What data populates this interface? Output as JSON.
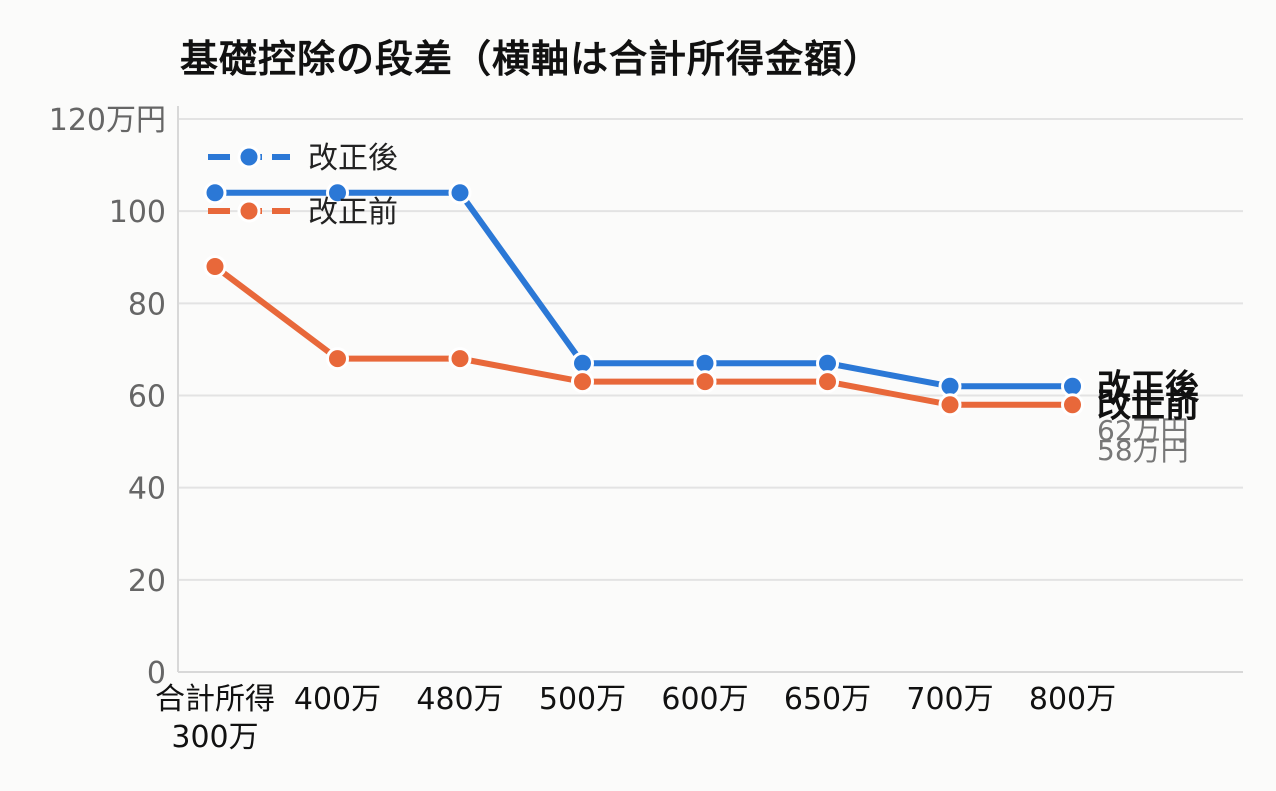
{
  "chart_data": {
    "type": "line",
    "title": "基礎控除の段差（横軸は合計所得金額）",
    "xlabel": "",
    "ylabel": "",
    "categories": [
      "合計所得\n300万",
      "400万",
      "480万",
      "500万",
      "600万",
      "650万",
      "700万",
      "800万"
    ],
    "yticks": [
      "0",
      "20",
      "40",
      "60",
      "80",
      "100",
      "120万円"
    ],
    "ylim": [
      0,
      120
    ],
    "grid": true,
    "legend": "top-left",
    "series": [
      {
        "name": "改正後",
        "color": "#2b78d6",
        "values": [
          104,
          104,
          104,
          67,
          67,
          67,
          62,
          62
        ],
        "end_label": "62万円"
      },
      {
        "name": "改正前",
        "color": "#e8683a",
        "values": [
          88,
          68,
          68,
          63,
          63,
          63,
          58,
          58
        ],
        "end_label": "58万円"
      }
    ]
  }
}
